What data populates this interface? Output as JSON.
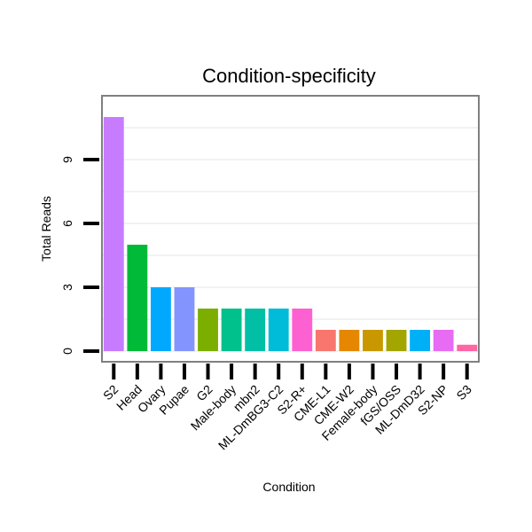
{
  "chart_data": {
    "type": "bar",
    "title": "Condition-specificity",
    "xlabel": "Condition",
    "ylabel": "Total Reads",
    "categories": [
      "S2",
      "Head",
      "Ovary",
      "Pupae",
      "G2",
      "Male-body",
      "mbn2",
      "ML-DmBG3-C2",
      "S2-R+",
      "CME-L1",
      "CME-W2",
      "Female-body",
      "fGS/OSS",
      "ML-DmD32",
      "S2-NP",
      "S3"
    ],
    "values": [
      11,
      5,
      3,
      3,
      2,
      2,
      2,
      2,
      2,
      1,
      1,
      1,
      1,
      1,
      1,
      0.3
    ],
    "colors": [
      "#c77cff",
      "#00ba38",
      "#00a9ff",
      "#8494ff",
      "#7cae00",
      "#00c08b",
      "#00bfa5",
      "#00bcd8",
      "#fd61d1",
      "#f8766d",
      "#e58700",
      "#c99800",
      "#a3a500",
      "#00b0f6",
      "#e76bf3",
      "#ff67a4"
    ],
    "ylim": [
      -0.5,
      12
    ],
    "yticks": [
      0,
      3,
      6,
      9
    ],
    "grid": true,
    "legend": "none"
  }
}
